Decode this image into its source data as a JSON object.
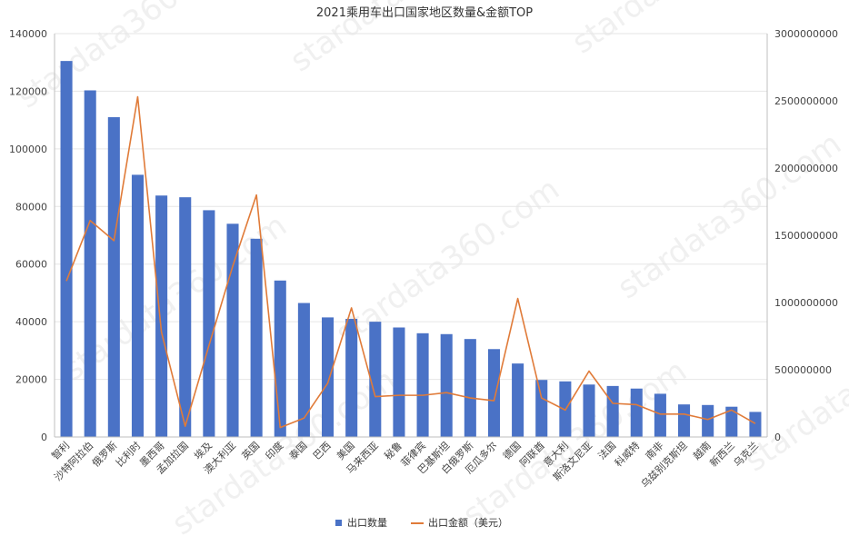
{
  "chart_data": {
    "type": "bar",
    "title": "2021乘用车出口国家地区数量&金额TOP",
    "categories": [
      "智利",
      "沙特阿拉伯",
      "俄罗斯",
      "比利时",
      "墨西哥",
      "孟加拉国",
      "埃及",
      "澳大利亚",
      "英国",
      "印度",
      "泰国",
      "巴西",
      "美国",
      "马来西亚",
      "秘鲁",
      "菲律宾",
      "巴基斯坦",
      "白俄罗斯",
      "厄瓜多尔",
      "德国",
      "阿联酋",
      "意大利",
      "斯洛文尼亚",
      "法国",
      "科威特",
      "南非",
      "乌兹别克斯坦",
      "越南",
      "新西兰",
      "乌克兰"
    ],
    "series": [
      {
        "name": "出口数量",
        "kind": "bar",
        "axis": "left",
        "color": "#4a72c6",
        "values": [
          130500,
          120300,
          111000,
          91000,
          83800,
          83200,
          78700,
          74000,
          68800,
          54300,
          46500,
          41500,
          41000,
          40000,
          38000,
          36000,
          35700,
          34000,
          30500,
          25500,
          19800,
          19300,
          18200,
          17700,
          16800,
          15000,
          11300,
          11100,
          10500,
          8700
        ]
      },
      {
        "name": "出口金额（美元）",
        "kind": "line",
        "axis": "right",
        "color": "#e07b39",
        "values": [
          1160000000,
          1610000000,
          1460000000,
          2530000000,
          780000000,
          80000000,
          680000000,
          1270000000,
          1800000000,
          70000000,
          140000000,
          400000000,
          960000000,
          300000000,
          310000000,
          310000000,
          330000000,
          290000000,
          270000000,
          1030000000,
          290000000,
          200000000,
          490000000,
          250000000,
          240000000,
          170000000,
          170000000,
          130000000,
          200000000,
          100000000
        ]
      }
    ],
    "y_left": {
      "min": 0,
      "max": 140000,
      "ticks": [
        "0",
        "20000",
        "40000",
        "60000",
        "80000",
        "100000",
        "120000",
        "140000"
      ]
    },
    "y_right": {
      "min": 0,
      "max": 3000000000,
      "ticks": [
        "0",
        "500000000",
        "1000000000",
        "1500000000",
        "2000000000",
        "2500000000",
        "3000000000"
      ]
    },
    "grid": true,
    "legend_position": "bottom",
    "watermark": "stardata360.com",
    "colors": {
      "grid": "#e6e6e6",
      "axis": "#bfbfbf"
    }
  }
}
